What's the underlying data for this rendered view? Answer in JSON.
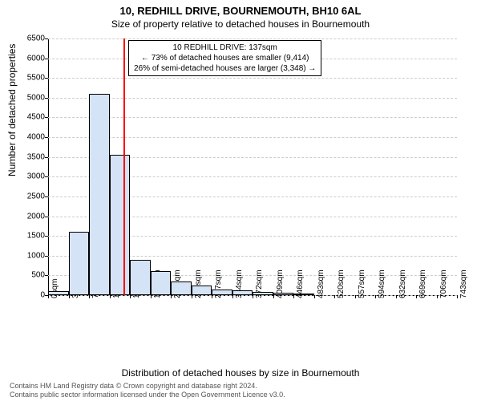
{
  "title": "10, REDHILL DRIVE, BOURNEMOUTH, BH10 6AL",
  "subtitle": "Size of property relative to detached houses in Bournemouth",
  "y_label": "Number of detached properties",
  "x_label": "Distribution of detached houses by size in Bournemouth",
  "footer1": "Contains HM Land Registry data © Crown copyright and database right 2024.",
  "footer2": "Contains public sector information licensed under the Open Government Licence v3.0.",
  "chart": {
    "type": "histogram",
    "ylim": [
      0,
      6500
    ],
    "ytick_step": 500,
    "y_ticks": [
      0,
      500,
      1000,
      1500,
      2000,
      2500,
      3000,
      3500,
      4000,
      4500,
      5000,
      5500,
      6000,
      6500
    ],
    "x_tick_step": 37,
    "x_tick_labels": [
      "0sqm",
      "37sqm",
      "74sqm",
      "111sqm",
      "149sqm",
      "186sqm",
      "223sqm",
      "260sqm",
      "297sqm",
      "334sqm",
      "372sqm",
      "409sqm",
      "446sqm",
      "483sqm",
      "520sqm",
      "557sqm",
      "594sqm",
      "632sqm",
      "669sqm",
      "706sqm",
      "743sqm"
    ],
    "bar_values": [
      100,
      1600,
      5100,
      3550,
      900,
      600,
      350,
      250,
      150,
      120,
      90,
      60,
      50,
      0,
      0,
      0,
      0,
      0,
      0,
      0
    ],
    "bar_color": "#d5e3f7",
    "bar_border": "#000000",
    "grid_color": "#cccccc",
    "background_color": "#ffffff",
    "ref_line_x": 137,
    "ref_line_color": "#ff0000",
    "x_max": 743
  },
  "annotation": {
    "line1": "10 REDHILL DRIVE: 137sqm",
    "line2": "← 73% of detached houses are smaller (9,414)",
    "line3": "26% of semi-detached houses are larger (3,348) →"
  }
}
